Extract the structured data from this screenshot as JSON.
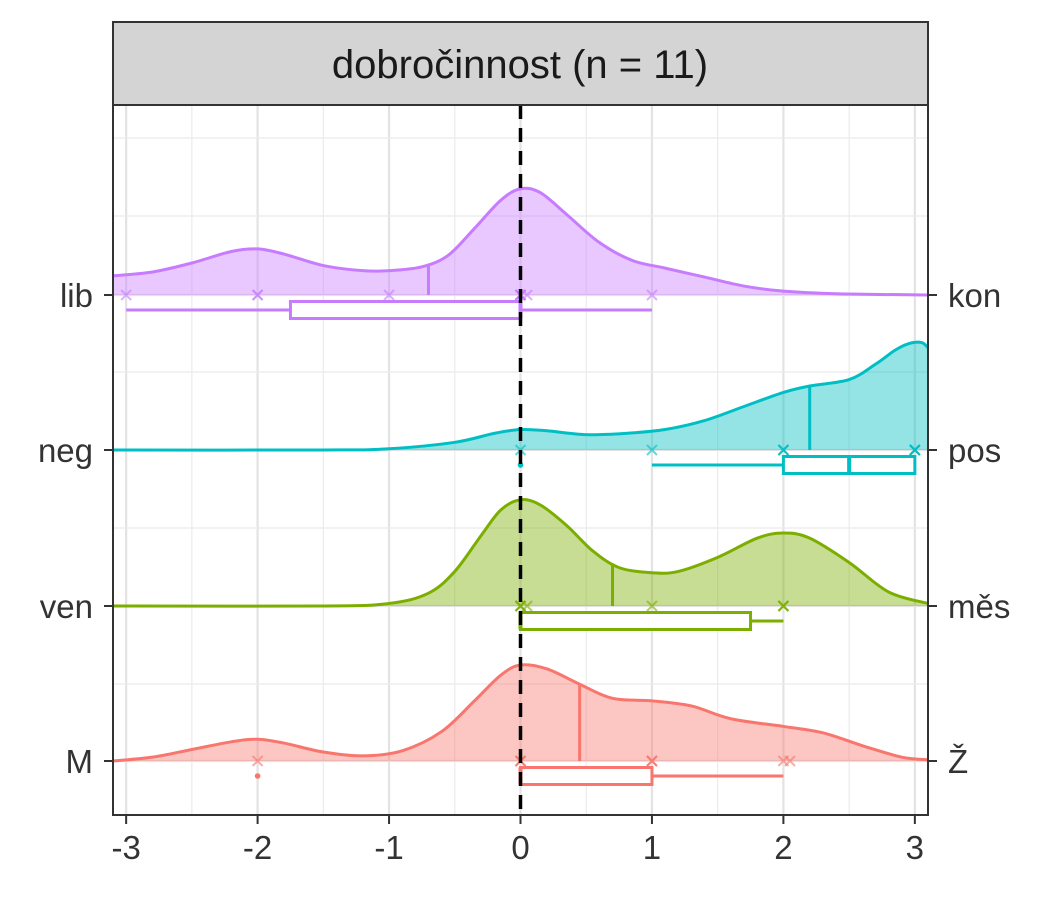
{
  "chart_data": {
    "type": "ridgeline",
    "title": "dobročinnost (n = 11)",
    "xlabel": "",
    "ylabel": "",
    "xlim": [
      -3.1,
      3.1
    ],
    "x_ticks": [
      -3,
      -2,
      -1,
      0,
      1,
      2,
      3
    ],
    "x_tick_labels": [
      "-3",
      "-2",
      "-1",
      "0",
      "1",
      "2",
      "3"
    ],
    "reference_line_x": 0,
    "grid": true,
    "legend": "none",
    "rows": [
      {
        "left_label": "lib",
        "right_label": "kon",
        "color": "#C77CFF",
        "density_peak": 0.85,
        "density_curve": [
          [
            -3.1,
            0.15
          ],
          [
            -2.8,
            0.18
          ],
          [
            -2.5,
            0.25
          ],
          [
            -2.2,
            0.34
          ],
          [
            -2.0,
            0.36
          ],
          [
            -1.8,
            0.32
          ],
          [
            -1.5,
            0.23
          ],
          [
            -1.2,
            0.19
          ],
          [
            -1.0,
            0.19
          ],
          [
            -0.75,
            0.22
          ],
          [
            -0.55,
            0.31
          ],
          [
            -0.35,
            0.52
          ],
          [
            -0.15,
            0.74
          ],
          [
            0.0,
            0.83
          ],
          [
            0.15,
            0.8
          ],
          [
            0.35,
            0.63
          ],
          [
            0.6,
            0.41
          ],
          [
            0.85,
            0.27
          ],
          [
            1.1,
            0.21
          ],
          [
            1.4,
            0.14
          ],
          [
            1.7,
            0.07
          ],
          [
            2.0,
            0.03
          ],
          [
            2.4,
            0.01
          ],
          [
            3.1,
            0.0
          ]
        ],
        "mean": -0.7,
        "points": [
          -3,
          -2,
          -2,
          -1,
          0,
          0,
          0,
          0,
          0,
          0.05,
          1
        ],
        "box": {
          "whisker_low": -3,
          "q1": -1.75,
          "median": 0,
          "q3": 0,
          "whisker_high": 1
        },
        "outliers": []
      },
      {
        "left_label": "neg",
        "right_label": "pos",
        "color": "#00BFC4",
        "density_peak": 0.85,
        "density_curve": [
          [
            -3.1,
            0.0
          ],
          [
            -1.5,
            0.0
          ],
          [
            -1.0,
            0.01
          ],
          [
            -0.5,
            0.06
          ],
          [
            -0.2,
            0.13
          ],
          [
            0.0,
            0.16
          ],
          [
            0.2,
            0.15
          ],
          [
            0.5,
            0.12
          ],
          [
            0.8,
            0.13
          ],
          [
            1.1,
            0.16
          ],
          [
            1.4,
            0.23
          ],
          [
            1.7,
            0.34
          ],
          [
            2.0,
            0.45
          ],
          [
            2.2,
            0.5
          ],
          [
            2.5,
            0.55
          ],
          [
            2.7,
            0.67
          ],
          [
            2.85,
            0.78
          ],
          [
            2.95,
            0.83
          ],
          [
            3.05,
            0.84
          ],
          [
            3.1,
            0.8
          ]
        ],
        "mean": 2.2,
        "points": [
          0,
          1,
          2,
          2,
          2,
          3,
          3,
          3,
          3,
          3
        ],
        "box": {
          "whisker_low": 1,
          "q1": 2,
          "median": 2.5,
          "q3": 3,
          "whisker_high": 3
        },
        "outliers": [
          0
        ]
      },
      {
        "left_label": "ven",
        "right_label": "měs",
        "color": "#7CAE00",
        "density_peak": 0.85,
        "density_curve": [
          [
            -3.1,
            0.0
          ],
          [
            -1.5,
            0.0
          ],
          [
            -1.0,
            0.02
          ],
          [
            -0.7,
            0.1
          ],
          [
            -0.5,
            0.27
          ],
          [
            -0.3,
            0.55
          ],
          [
            -0.15,
            0.75
          ],
          [
            0.0,
            0.83
          ],
          [
            0.15,
            0.79
          ],
          [
            0.35,
            0.63
          ],
          [
            0.55,
            0.43
          ],
          [
            0.75,
            0.3
          ],
          [
            1.0,
            0.26
          ],
          [
            1.2,
            0.27
          ],
          [
            1.5,
            0.38
          ],
          [
            1.8,
            0.53
          ],
          [
            2.0,
            0.57
          ],
          [
            2.2,
            0.53
          ],
          [
            2.5,
            0.34
          ],
          [
            2.8,
            0.11
          ],
          [
            3.1,
            0.02
          ]
        ],
        "mean": 0.7,
        "points": [
          0,
          0,
          0,
          0.05,
          1,
          2,
          2,
          2
        ],
        "box": {
          "whisker_low": 0,
          "q1": 0,
          "median": 0,
          "q3": 1.75,
          "whisker_high": 2
        },
        "outliers": []
      },
      {
        "left_label": "M",
        "right_label": "Ž",
        "color": "#F8766D",
        "density_peak": 0.85,
        "density_curve": [
          [
            -3.1,
            0.0
          ],
          [
            -2.8,
            0.03
          ],
          [
            -2.5,
            0.09
          ],
          [
            -2.2,
            0.15
          ],
          [
            -2.0,
            0.17
          ],
          [
            -1.8,
            0.14
          ],
          [
            -1.5,
            0.07
          ],
          [
            -1.2,
            0.04
          ],
          [
            -0.9,
            0.08
          ],
          [
            -0.6,
            0.23
          ],
          [
            -0.35,
            0.47
          ],
          [
            -0.15,
            0.67
          ],
          [
            0.0,
            0.75
          ],
          [
            0.2,
            0.72
          ],
          [
            0.45,
            0.6
          ],
          [
            0.7,
            0.49
          ],
          [
            1.0,
            0.47
          ],
          [
            1.3,
            0.43
          ],
          [
            1.6,
            0.33
          ],
          [
            2.0,
            0.27
          ],
          [
            2.3,
            0.22
          ],
          [
            2.6,
            0.12
          ],
          [
            2.9,
            0.03
          ],
          [
            3.1,
            0.01
          ]
        ],
        "mean": 0.45,
        "points": [
          -2,
          0,
          0,
          0,
          1,
          1,
          1,
          2,
          2.05
        ],
        "box": {
          "whisker_low": 0,
          "q1": 0,
          "median": 0,
          "q3": 1,
          "whisker_high": 2
        },
        "outliers": [
          -2
        ]
      }
    ]
  }
}
